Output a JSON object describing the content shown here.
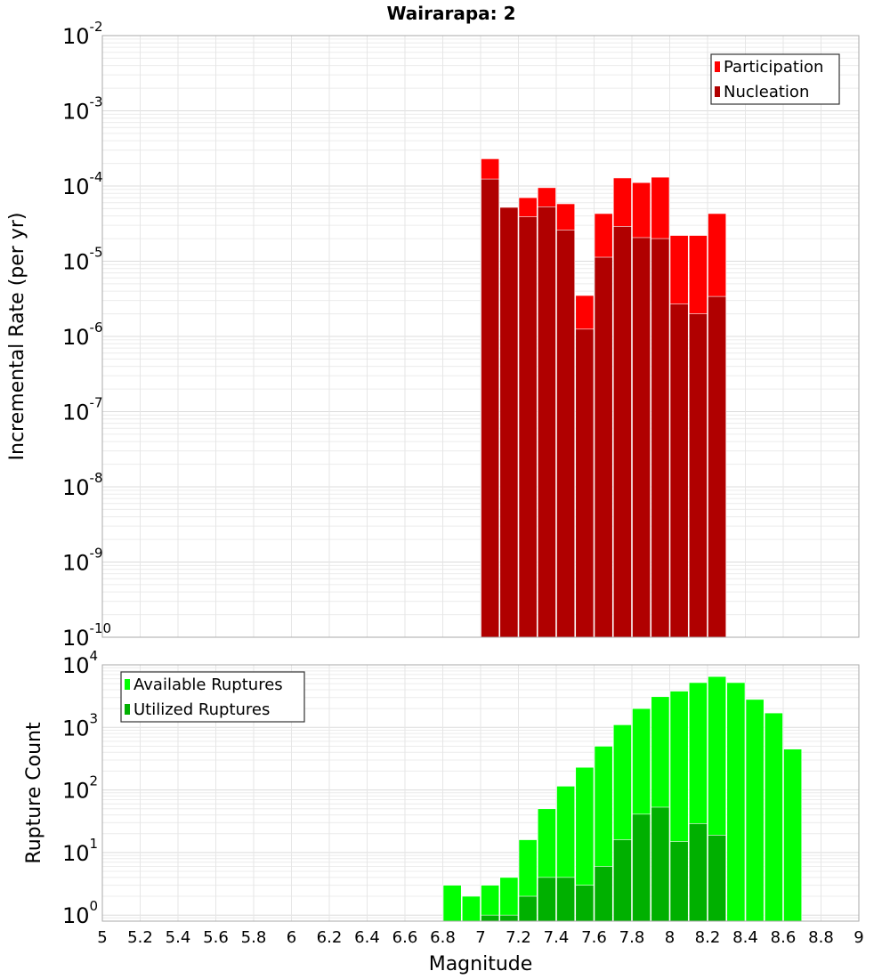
{
  "chart_data": [
    {
      "type": "bar",
      "title": "Wairarapa: 2",
      "xlabel": "Magnitude",
      "ylabel": "Incremental Rate (per yr)",
      "yscale": "log",
      "ylim": [
        1e-10,
        0.01
      ],
      "xlim": [
        5,
        9
      ],
      "grid": true,
      "legend_position": "top-right",
      "bin_width": 0.1,
      "x": [
        7.05,
        7.15,
        7.25,
        7.35,
        7.45,
        7.55,
        7.65,
        7.75,
        7.85,
        7.95,
        8.05,
        8.15,
        8.25
      ],
      "series": [
        {
          "name": "Participation",
          "color": "#ff0000",
          "values": [
            0.00023,
            5.2e-05,
            7e-05,
            9.5e-05,
            5.8e-05,
            3.5e-06,
            4.3e-05,
            0.000128,
            0.000111,
            0.000131,
            2.2e-05,
            2.2e-05,
            4.3e-05
          ]
        },
        {
          "name": "Nucleation",
          "color": "#b00000",
          "values": [
            0.000124,
            5.2e-05,
            3.9e-05,
            5.3e-05,
            2.6e-05,
            1.25e-06,
            1.13e-05,
            2.9e-05,
            2.06e-05,
            2e-05,
            2.7e-06,
            2e-06,
            3.4e-06
          ]
        }
      ],
      "ytick_exponents": [
        -10,
        -9,
        -8,
        -7,
        -6,
        -5,
        -4,
        -3,
        -2
      ]
    },
    {
      "type": "bar",
      "xlabel": "Magnitude",
      "ylabel": "Rupture Count",
      "yscale": "log",
      "ylim": [
        0.8,
        10000
      ],
      "xlim": [
        5,
        9
      ],
      "grid": true,
      "legend_position": "top-left",
      "bin_width": 0.1,
      "x": [
        6.85,
        6.95,
        7.05,
        7.15,
        7.25,
        7.35,
        7.45,
        7.55,
        7.65,
        7.75,
        7.85,
        7.95,
        8.05,
        8.15,
        8.25,
        8.35,
        8.45,
        8.55,
        8.65
      ],
      "series": [
        {
          "name": "Available Ruptures",
          "color": "#00ff00",
          "values": [
            3,
            2,
            3,
            4,
            16,
            50,
            115,
            230,
            500,
            1100,
            2000,
            3100,
            3800,
            5200,
            6500,
            5200,
            2800,
            1700,
            450
          ]
        },
        {
          "name": "Utilized Ruptures",
          "color": "#00b000",
          "values": [
            0,
            0,
            1,
            1,
            2,
            4,
            4,
            3,
            6,
            16,
            41,
            53,
            15,
            29,
            19,
            0,
            0,
            0,
            0
          ]
        }
      ],
      "ytick_exponents": [
        0,
        1,
        2,
        3,
        4
      ],
      "xticks": [
        "5",
        "5.2",
        "5.4",
        "5.6",
        "5.8",
        "6",
        "6.2",
        "6.4",
        "6.6",
        "6.8",
        "7",
        "7.2",
        "7.4",
        "7.6",
        "7.8",
        "8",
        "8.2",
        "8.4",
        "8.6",
        "8.8",
        "9"
      ]
    }
  ]
}
